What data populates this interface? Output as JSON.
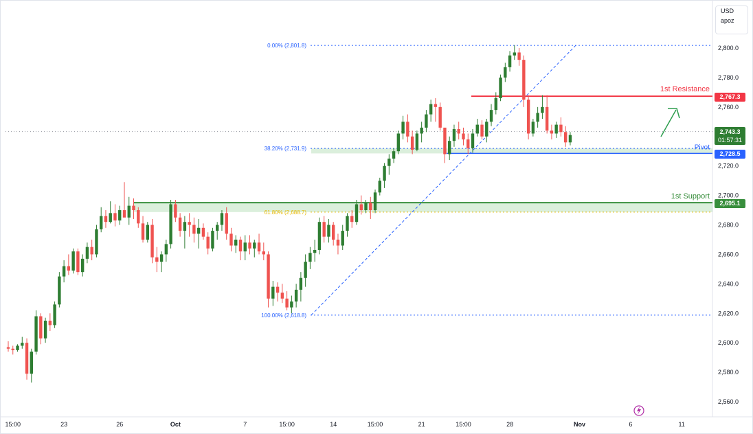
{
  "chart_data": {
    "type": "candlestick",
    "title": "",
    "xlabel": "",
    "ylabel": "",
    "currency": "USD",
    "scale_mode": "apoz",
    "ylim": [
      2550,
      2810
    ],
    "yticks": [
      2560,
      2580,
      2600,
      2620,
      2640,
      2660,
      2680,
      2700,
      2720,
      2740,
      2760,
      2780,
      2800
    ],
    "ytick_labels": [
      "2,560.0",
      "2,580.0",
      "2,600.0",
      "2,620.0",
      "2,640.0",
      "2,660.0",
      "2,680.0",
      "2,700.0",
      "2,720.0",
      "2,740.0",
      "2,760.0",
      "2,780.0",
      "2,800.0"
    ],
    "xticks": [
      {
        "label": "15:00",
        "bar": 1
      },
      {
        "label": "23",
        "bar": 12
      },
      {
        "label": "26",
        "bar": 24
      },
      {
        "label": "Oct",
        "bar": 36
      },
      {
        "label": "7",
        "bar": 51
      },
      {
        "label": "15:00",
        "bar": 60
      },
      {
        "label": "14",
        "bar": 70
      },
      {
        "label": "15:00",
        "bar": 79
      },
      {
        "label": "21",
        "bar": 89
      },
      {
        "label": "15:00",
        "bar": 98
      },
      {
        "label": "28",
        "bar": 108
      },
      {
        "label": "Nov",
        "bar": 123
      },
      {
        "label": "6",
        "bar": 134
      },
      {
        "label": "11",
        "bar": 145
      }
    ],
    "candles": [
      [
        2597,
        2601,
        2594,
        2596
      ],
      [
        2596,
        2598,
        2592,
        2595
      ],
      [
        2595,
        2599,
        2594,
        2598
      ],
      [
        2598,
        2604,
        2596,
        2600
      ],
      [
        2600,
        2603,
        2575,
        2579
      ],
      [
        2579,
        2596,
        2573,
        2594
      ],
      [
        2594,
        2622,
        2592,
        2618
      ],
      [
        2618,
        2620,
        2599,
        2603
      ],
      [
        2603,
        2617,
        2600,
        2615
      ],
      [
        2615,
        2620,
        2608,
        2612
      ],
      [
        2612,
        2628,
        2610,
        2626
      ],
      [
        2626,
        2648,
        2624,
        2645
      ],
      [
        2645,
        2656,
        2641,
        2652
      ],
      [
        2652,
        2660,
        2646,
        2649
      ],
      [
        2649,
        2664,
        2647,
        2662
      ],
      [
        2662,
        2664,
        2646,
        2648
      ],
      [
        2648,
        2660,
        2645,
        2657
      ],
      [
        2657,
        2668,
        2654,
        2665
      ],
      [
        2665,
        2670,
        2656,
        2660
      ],
      [
        2660,
        2680,
        2658,
        2677
      ],
      [
        2677,
        2692,
        2675,
        2686
      ],
      [
        2686,
        2690,
        2678,
        2682
      ],
      [
        2682,
        2696,
        2681,
        2688
      ],
      [
        2688,
        2694,
        2679,
        2683
      ],
      [
        2683,
        2693,
        2680,
        2690
      ],
      [
        2690,
        2709,
        2686,
        2685
      ],
      [
        2685,
        2699,
        2680,
        2693
      ],
      [
        2693,
        2698,
        2684,
        2690
      ],
      [
        2690,
        2692,
        2678,
        2681
      ],
      [
        2681,
        2686,
        2668,
        2670
      ],
      [
        2670,
        2682,
        2668,
        2680
      ],
      [
        2680,
        2684,
        2654,
        2658
      ],
      [
        2658,
        2665,
        2648,
        2655
      ],
      [
        2655,
        2662,
        2648,
        2660
      ],
      [
        2660,
        2670,
        2655,
        2667
      ],
      [
        2667,
        2697,
        2664,
        2694
      ],
      [
        2694,
        2697,
        2682,
        2685
      ],
      [
        2685,
        2688,
        2672,
        2676
      ],
      [
        2676,
        2686,
        2664,
        2682
      ],
      [
        2682,
        2688,
        2672,
        2680
      ],
      [
        2680,
        2685,
        2668,
        2674
      ],
      [
        2674,
        2684,
        2664,
        2678
      ],
      [
        2678,
        2681,
        2670,
        2672
      ],
      [
        2672,
        2675,
        2660,
        2664
      ],
      [
        2664,
        2678,
        2662,
        2676
      ],
      [
        2676,
        2682,
        2670,
        2680
      ],
      [
        2680,
        2690,
        2676,
        2688
      ],
      [
        2688,
        2692,
        2670,
        2674
      ],
      [
        2674,
        2678,
        2662,
        2666
      ],
      [
        2666,
        2673,
        2661,
        2670
      ],
      [
        2670,
        2672,
        2656,
        2662
      ],
      [
        2662,
        2673,
        2656,
        2668
      ],
      [
        2668,
        2673,
        2660,
        2664
      ],
      [
        2664,
        2670,
        2658,
        2668
      ],
      [
        2668,
        2674,
        2660,
        2662
      ],
      [
        2662,
        2668,
        2656,
        2660
      ],
      [
        2660,
        2662,
        2624,
        2630
      ],
      [
        2630,
        2642,
        2625,
        2638
      ],
      [
        2638,
        2641,
        2628,
        2634
      ],
      [
        2634,
        2640,
        2627,
        2630
      ],
      [
        2630,
        2635,
        2622,
        2624
      ],
      [
        2624,
        2632,
        2620,
        2628
      ],
      [
        2628,
        2640,
        2624,
        2636
      ],
      [
        2636,
        2648,
        2628,
        2644
      ],
      [
        2644,
        2660,
        2638,
        2655
      ],
      [
        2655,
        2665,
        2650,
        2661
      ],
      [
        2661,
        2670,
        2655,
        2663
      ],
      [
        2663,
        2685,
        2660,
        2682
      ],
      [
        2682,
        2686,
        2668,
        2672
      ],
      [
        2672,
        2684,
        2668,
        2680
      ],
      [
        2680,
        2682,
        2666,
        2670
      ],
      [
        2670,
        2674,
        2660,
        2666
      ],
      [
        2666,
        2680,
        2663,
        2676
      ],
      [
        2676,
        2688,
        2672,
        2686
      ],
      [
        2686,
        2690,
        2678,
        2682
      ],
      [
        2682,
        2697,
        2680,
        2694
      ],
      [
        2694,
        2700,
        2687,
        2690
      ],
      [
        2690,
        2697,
        2688,
        2695
      ],
      [
        2695,
        2699,
        2684,
        2690
      ],
      [
        2690,
        2704,
        2688,
        2702
      ],
      [
        2702,
        2712,
        2700,
        2710
      ],
      [
        2710,
        2722,
        2705,
        2720
      ],
      [
        2720,
        2728,
        2714,
        2725
      ],
      [
        2725,
        2732,
        2722,
        2730
      ],
      [
        2730,
        2744,
        2728,
        2742
      ],
      [
        2742,
        2754,
        2738,
        2750
      ],
      [
        2750,
        2755,
        2736,
        2740
      ],
      [
        2740,
        2744,
        2728,
        2731
      ],
      [
        2731,
        2744,
        2730,
        2742
      ],
      [
        2742,
        2750,
        2736,
        2746
      ],
      [
        2746,
        2758,
        2743,
        2755
      ],
      [
        2755,
        2765,
        2750,
        2762
      ],
      [
        2762,
        2766,
        2750,
        2760
      ],
      [
        2760,
        2763,
        2744,
        2746
      ],
      [
        2746,
        2744,
        2722,
        2728
      ],
      [
        2728,
        2740,
        2724,
        2737
      ],
      [
        2737,
        2748,
        2733,
        2745
      ],
      [
        2745,
        2750,
        2738,
        2742
      ],
      [
        2742,
        2746,
        2734,
        2738
      ],
      [
        2738,
        2742,
        2728,
        2732
      ],
      [
        2732,
        2745,
        2729,
        2742
      ],
      [
        2742,
        2752,
        2740,
        2748
      ],
      [
        2748,
        2751,
        2738,
        2740
      ],
      [
        2740,
        2752,
        2736,
        2750
      ],
      [
        2750,
        2762,
        2747,
        2758
      ],
      [
        2758,
        2770,
        2755,
        2766
      ],
      [
        2766,
        2782,
        2764,
        2780
      ],
      [
        2780,
        2790,
        2777,
        2787
      ],
      [
        2787,
        2798,
        2784,
        2795
      ],
      [
        2795,
        2802,
        2792,
        2797
      ],
      [
        2797,
        2800,
        2788,
        2792
      ],
      [
        2792,
        2795,
        2760,
        2765
      ],
      [
        2765,
        2768,
        2738,
        2742
      ],
      [
        2742,
        2752,
        2740,
        2750
      ],
      [
        2750,
        2760,
        2746,
        2756
      ],
      [
        2756,
        2768,
        2752,
        2760
      ],
      [
        2760,
        2768,
        2742,
        2744
      ],
      [
        2744,
        2748,
        2738,
        2742
      ],
      [
        2742,
        2750,
        2739,
        2748
      ],
      [
        2748,
        2753,
        2740,
        2743
      ],
      [
        2743,
        2747,
        2733,
        2736
      ],
      [
        2736,
        2743,
        2734,
        2741
      ]
    ],
    "fibonacci": [
      {
        "label": "0.00% (2,801.8)",
        "price": 2801.8,
        "color": "#2962ff"
      },
      {
        "label": "38.20% (2,731.9)",
        "price": 2731.9,
        "color": "#2962ff"
      },
      {
        "label": "61.80% (2,688.7)",
        "price": 2688.7,
        "color": "#e6b800"
      },
      {
        "label": "100.00% (2,618.8)",
        "price": 2618.8,
        "color": "#2962ff"
      }
    ],
    "levels": [
      {
        "label": "1st Resistance",
        "price": 2767.3,
        "badge": "2,767.3",
        "color": "#f23645"
      },
      {
        "label": "Pivot",
        "price": 2728.5,
        "badge": "2,728.5",
        "color": "#2962ff"
      },
      {
        "label": "1st Support",
        "price": 2695.1,
        "badge": "2,695.1",
        "color": "#388e3c"
      }
    ],
    "current_price": {
      "price": 2743.3,
      "badge": "2,743.3",
      "countdown": "01:57:31",
      "color": "#2e7d32"
    },
    "up_color": "#26a69a",
    "up_fill": "#2e7d32",
    "down_color": "#ef5350"
  }
}
